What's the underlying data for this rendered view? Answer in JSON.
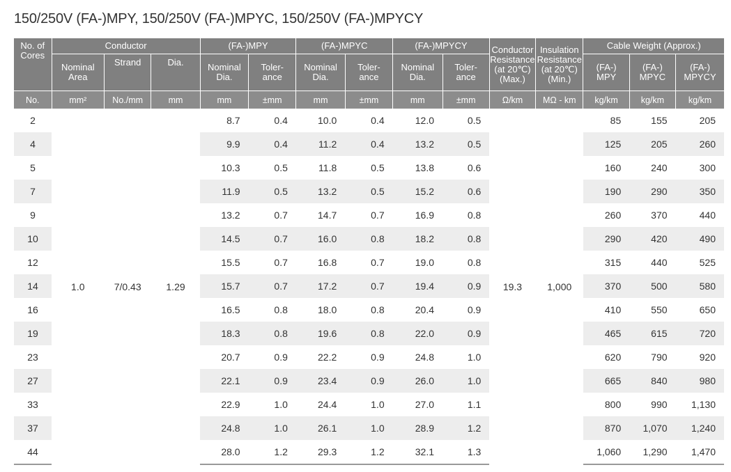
{
  "title": "150/250V (FA-)MPY, 150/250V (FA-)MPYC, 150/250V (FA-)MPYCY",
  "headers": {
    "no_of_cores": "No. of\nCores",
    "conductor": "Conductor",
    "nominal_area": "Nominal\nArea",
    "strand": "Strand",
    "dia": "Dia.",
    "mpy": "(FA-)MPY",
    "mpyc": "(FA-)MPYC",
    "mpycy": "(FA-)MPYCY",
    "nominal_dia": "Nominal\nDia.",
    "tolerance": "Toler-\nance",
    "conductor_resistance": "Conductor\nResistance\n(at 20℃)\n(Max.)",
    "insulation_resistance": "Insulation\nResistance\n(at 20℃)\n(Min.)",
    "cable_weight": "Cable Weight (Approx.)",
    "w_mpy": "(FA-)\nMPY",
    "w_mpyc": "(FA-)\nMPYC",
    "w_mpycy": "(FA-)\nMPYCY"
  },
  "units": [
    "No.",
    "mm²",
    "No./mm",
    "mm",
    "mm",
    "±mm",
    "mm",
    "±mm",
    "mm",
    "±mm",
    "Ω/km",
    "MΩ - km",
    "kg/km",
    "kg/km",
    "kg/km"
  ],
  "common": {
    "nominal_area": "1.0",
    "strand": "7/0.43",
    "dia": "1.29",
    "conductor_resistance": "19.3",
    "insulation_resistance": "1,000"
  },
  "rows": [
    {
      "cores": "2",
      "mpy_dia": "8.7",
      "mpy_tol": "0.4",
      "mpyc_dia": "10.0",
      "mpyc_tol": "0.4",
      "mpycy_dia": "12.0",
      "mpycy_tol": "0.5",
      "w_mpy": "85",
      "w_mpyc": "155",
      "w_mpycy": "205"
    },
    {
      "cores": "4",
      "mpy_dia": "9.9",
      "mpy_tol": "0.4",
      "mpyc_dia": "11.2",
      "mpyc_tol": "0.4",
      "mpycy_dia": "13.2",
      "mpycy_tol": "0.5",
      "w_mpy": "125",
      "w_mpyc": "205",
      "w_mpycy": "260"
    },
    {
      "cores": "5",
      "mpy_dia": "10.3",
      "mpy_tol": "0.5",
      "mpyc_dia": "11.8",
      "mpyc_tol": "0.5",
      "mpycy_dia": "13.8",
      "mpycy_tol": "0.6",
      "w_mpy": "160",
      "w_mpyc": "240",
      "w_mpycy": "300"
    },
    {
      "cores": "7",
      "mpy_dia": "11.9",
      "mpy_tol": "0.5",
      "mpyc_dia": "13.2",
      "mpyc_tol": "0.5",
      "mpycy_dia": "15.2",
      "mpycy_tol": "0.6",
      "w_mpy": "190",
      "w_mpyc": "290",
      "w_mpycy": "350"
    },
    {
      "cores": "9",
      "mpy_dia": "13.2",
      "mpy_tol": "0.7",
      "mpyc_dia": "14.7",
      "mpyc_tol": "0.7",
      "mpycy_dia": "16.9",
      "mpycy_tol": "0.8",
      "w_mpy": "260",
      "w_mpyc": "370",
      "w_mpycy": "440"
    },
    {
      "cores": "10",
      "mpy_dia": "14.5",
      "mpy_tol": "0.7",
      "mpyc_dia": "16.0",
      "mpyc_tol": "0.8",
      "mpycy_dia": "18.2",
      "mpycy_tol": "0.8",
      "w_mpy": "290",
      "w_mpyc": "420",
      "w_mpycy": "490"
    },
    {
      "cores": "12",
      "mpy_dia": "15.5",
      "mpy_tol": "0.7",
      "mpyc_dia": "16.8",
      "mpyc_tol": "0.7",
      "mpycy_dia": "19.0",
      "mpycy_tol": "0.8",
      "w_mpy": "315",
      "w_mpyc": "440",
      "w_mpycy": "525"
    },
    {
      "cores": "14",
      "mpy_dia": "15.7",
      "mpy_tol": "0.7",
      "mpyc_dia": "17.2",
      "mpyc_tol": "0.7",
      "mpycy_dia": "19.4",
      "mpycy_tol": "0.9",
      "w_mpy": "370",
      "w_mpyc": "500",
      "w_mpycy": "580"
    },
    {
      "cores": "16",
      "mpy_dia": "16.5",
      "mpy_tol": "0.8",
      "mpyc_dia": "18.0",
      "mpyc_tol": "0.8",
      "mpycy_dia": "20.4",
      "mpycy_tol": "0.9",
      "w_mpy": "410",
      "w_mpyc": "550",
      "w_mpycy": "650"
    },
    {
      "cores": "19",
      "mpy_dia": "18.3",
      "mpy_tol": "0.8",
      "mpyc_dia": "19.6",
      "mpyc_tol": "0.8",
      "mpycy_dia": "22.0",
      "mpycy_tol": "0.9",
      "w_mpy": "465",
      "w_mpyc": "615",
      "w_mpycy": "720"
    },
    {
      "cores": "23",
      "mpy_dia": "20.7",
      "mpy_tol": "0.9",
      "mpyc_dia": "22.2",
      "mpyc_tol": "0.9",
      "mpycy_dia": "24.8",
      "mpycy_tol": "1.0",
      "w_mpy": "620",
      "w_mpyc": "790",
      "w_mpycy": "920"
    },
    {
      "cores": "27",
      "mpy_dia": "22.1",
      "mpy_tol": "0.9",
      "mpyc_dia": "23.4",
      "mpyc_tol": "0.9",
      "mpycy_dia": "26.0",
      "mpycy_tol": "1.0",
      "w_mpy": "665",
      "w_mpyc": "840",
      "w_mpycy": "980"
    },
    {
      "cores": "33",
      "mpy_dia": "22.9",
      "mpy_tol": "1.0",
      "mpyc_dia": "24.4",
      "mpyc_tol": "1.0",
      "mpycy_dia": "27.0",
      "mpycy_tol": "1.1",
      "w_mpy": "800",
      "w_mpyc": "990",
      "w_mpycy": "1,130"
    },
    {
      "cores": "37",
      "mpy_dia": "24.8",
      "mpy_tol": "1.0",
      "mpyc_dia": "26.1",
      "mpyc_tol": "1.0",
      "mpycy_dia": "28.9",
      "mpycy_tol": "1.2",
      "w_mpy": "870",
      "w_mpyc": "1,070",
      "w_mpycy": "1,240"
    },
    {
      "cores": "44",
      "mpy_dia": "28.0",
      "mpy_tol": "1.2",
      "mpyc_dia": "29.3",
      "mpyc_tol": "1.2",
      "mpycy_dia": "32.1",
      "mpycy_tol": "1.3",
      "w_mpy": "1,060",
      "w_mpyc": "1,290",
      "w_mpycy": "1,470"
    }
  ]
}
